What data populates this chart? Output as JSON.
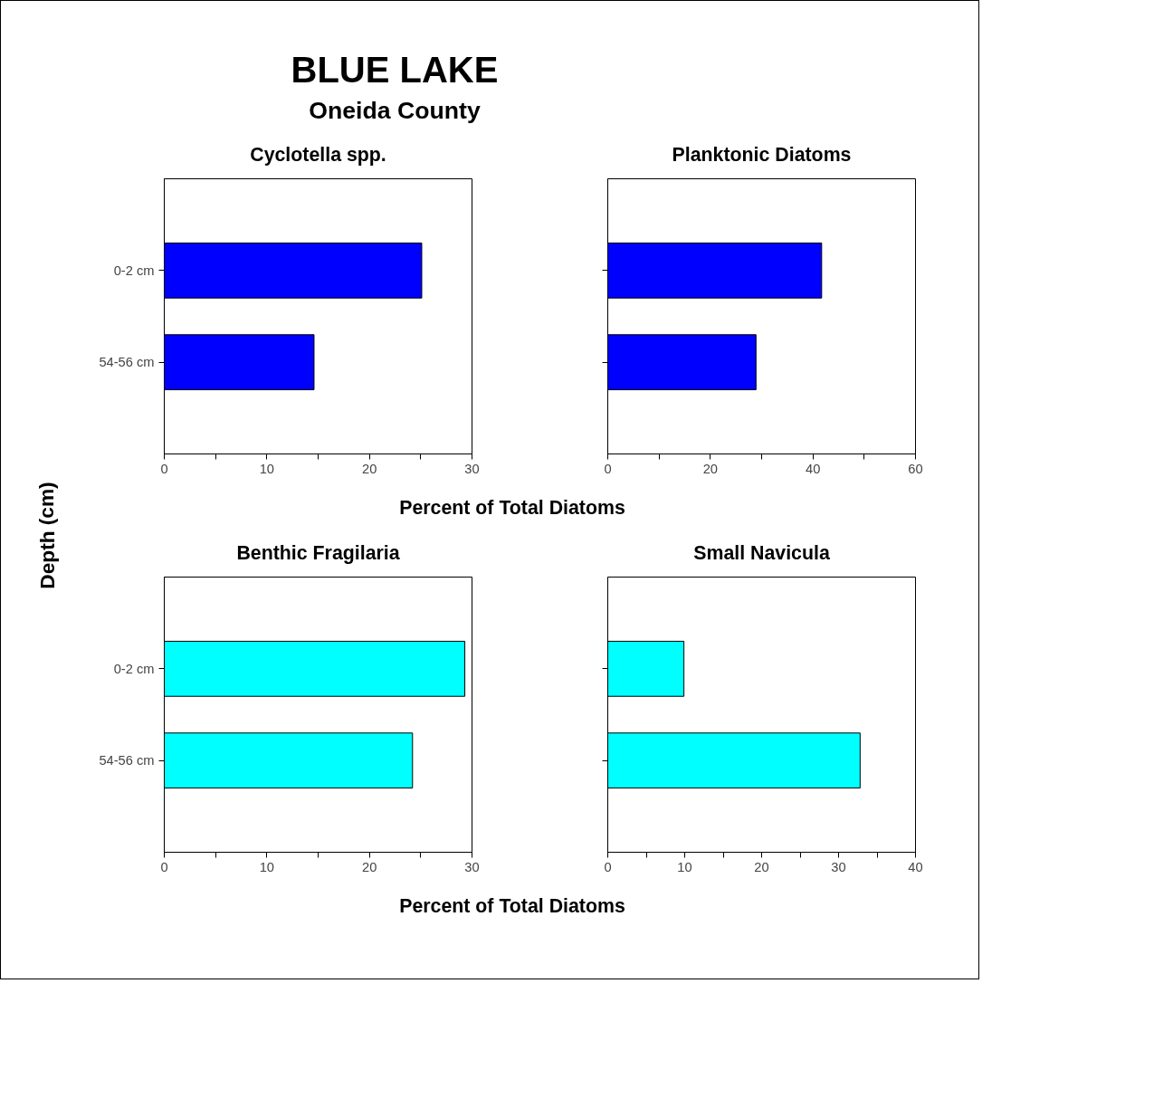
{
  "chart_data": [
    {
      "type": "bar",
      "orientation": "horizontal",
      "title": "Cyclotella spp.",
      "annotations": [
        "BLUE LAKE",
        "Oneida County"
      ],
      "ylabel": "Depth (cm)",
      "xlabel": "Percent of Total Diatoms",
      "categories": [
        "0-2 cm",
        "54-56 cm"
      ],
      "values": [
        25.1,
        14.6
      ],
      "color": "#0000ff",
      "xlim": [
        0,
        30
      ],
      "xticks": [
        0,
        {
          "value": 5,
          "label": null
        },
        10,
        {
          "value": 15,
          "label": null
        },
        20,
        {
          "value": 25,
          "label": null
        },
        30
      ],
      "grid": false
    },
    {
      "type": "bar",
      "orientation": "horizontal",
      "title": "Planktonic Diatoms",
      "categories": [
        null,
        null
      ],
      "values": [
        41.7,
        28.9
      ],
      "color": "#0000ff",
      "xlim": [
        0,
        60
      ],
      "xticks": [
        0,
        {
          "value": 10,
          "label": null
        },
        20,
        {
          "value": 30,
          "label": null
        },
        40,
        {
          "value": 50,
          "label": null
        },
        60
      ],
      "grid": false
    },
    {
      "type": "bar",
      "orientation": "horizontal",
      "title": "Benthic Fragilaria",
      "xlabel": "Percent of Total Diatoms",
      "categories": [
        "0-2 cm",
        "54-56 cm"
      ],
      "values": [
        29.3,
        24.2
      ],
      "color": "#00ffff",
      "xlim": [
        0,
        30
      ],
      "xticks": [
        0,
        {
          "value": 5,
          "label": null
        },
        10,
        {
          "value": 15,
          "label": null
        },
        20,
        {
          "value": 25,
          "label": null
        },
        30
      ],
      "grid": false
    },
    {
      "type": "bar",
      "orientation": "horizontal",
      "title": "Small Navicula",
      "categories": [
        null,
        null
      ],
      "values": [
        9.9,
        32.8
      ],
      "color": "#00ffff",
      "xlim": [
        0,
        40
      ],
      "xticks": [
        0,
        {
          "value": 5,
          "label": null
        },
        10,
        {
          "value": 15,
          "label": null
        },
        20,
        {
          "value": 25,
          "label": null
        },
        30,
        {
          "value": 35,
          "label": null
        },
        40
      ],
      "grid": false
    }
  ]
}
